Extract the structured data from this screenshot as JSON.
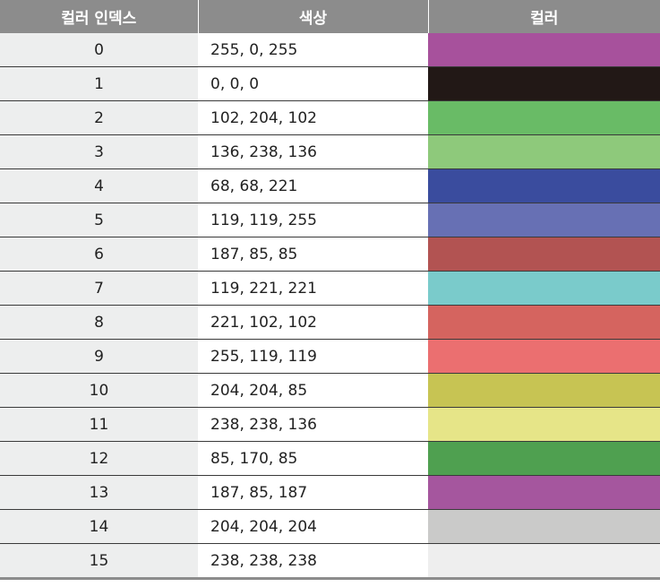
{
  "table": {
    "headers": [
      "컬러 인덱스",
      "색상",
      "컬러"
    ],
    "rows": [
      {
        "index": "0",
        "rgb": "255, 0, 255",
        "swatch_color": "#a7519c"
      },
      {
        "index": "1",
        "rgb": "0, 0, 0",
        "swatch_color": "#221816"
      },
      {
        "index": "2",
        "rgb": "102, 204, 102",
        "swatch_color": "#69bb66"
      },
      {
        "index": "3",
        "rgb": "136, 238, 136",
        "swatch_color": "#8ec97b"
      },
      {
        "index": "4",
        "rgb": "68, 68, 221",
        "swatch_color": "#3a4c9e"
      },
      {
        "index": "5",
        "rgb": "119, 119, 255",
        "swatch_color": "#6770b4"
      },
      {
        "index": "6",
        "rgb": "187, 85, 85",
        "swatch_color": "#b25352"
      },
      {
        "index": "7",
        "rgb": "119, 221, 221",
        "swatch_color": "#7acbcb"
      },
      {
        "index": "8",
        "rgb": "221, 102, 102",
        "swatch_color": "#d5645f"
      },
      {
        "index": "9",
        "rgb": "255, 119, 119",
        "swatch_color": "#eb6f70"
      },
      {
        "index": "10",
        "rgb": "204, 204, 85",
        "swatch_color": "#c7c453"
      },
      {
        "index": "11",
        "rgb": "238, 238, 136",
        "swatch_color": "#e6e588"
      },
      {
        "index": "12",
        "rgb": "85, 170, 85",
        "swatch_color": "#4fa050"
      },
      {
        "index": "13",
        "rgb": "187, 85, 187",
        "swatch_color": "#a5569e"
      },
      {
        "index": "14",
        "rgb": "204, 204, 204",
        "swatch_color": "#cacac9"
      },
      {
        "index": "15",
        "rgb": "238, 238, 238",
        "swatch_color": "#eeeeee"
      }
    ]
  }
}
